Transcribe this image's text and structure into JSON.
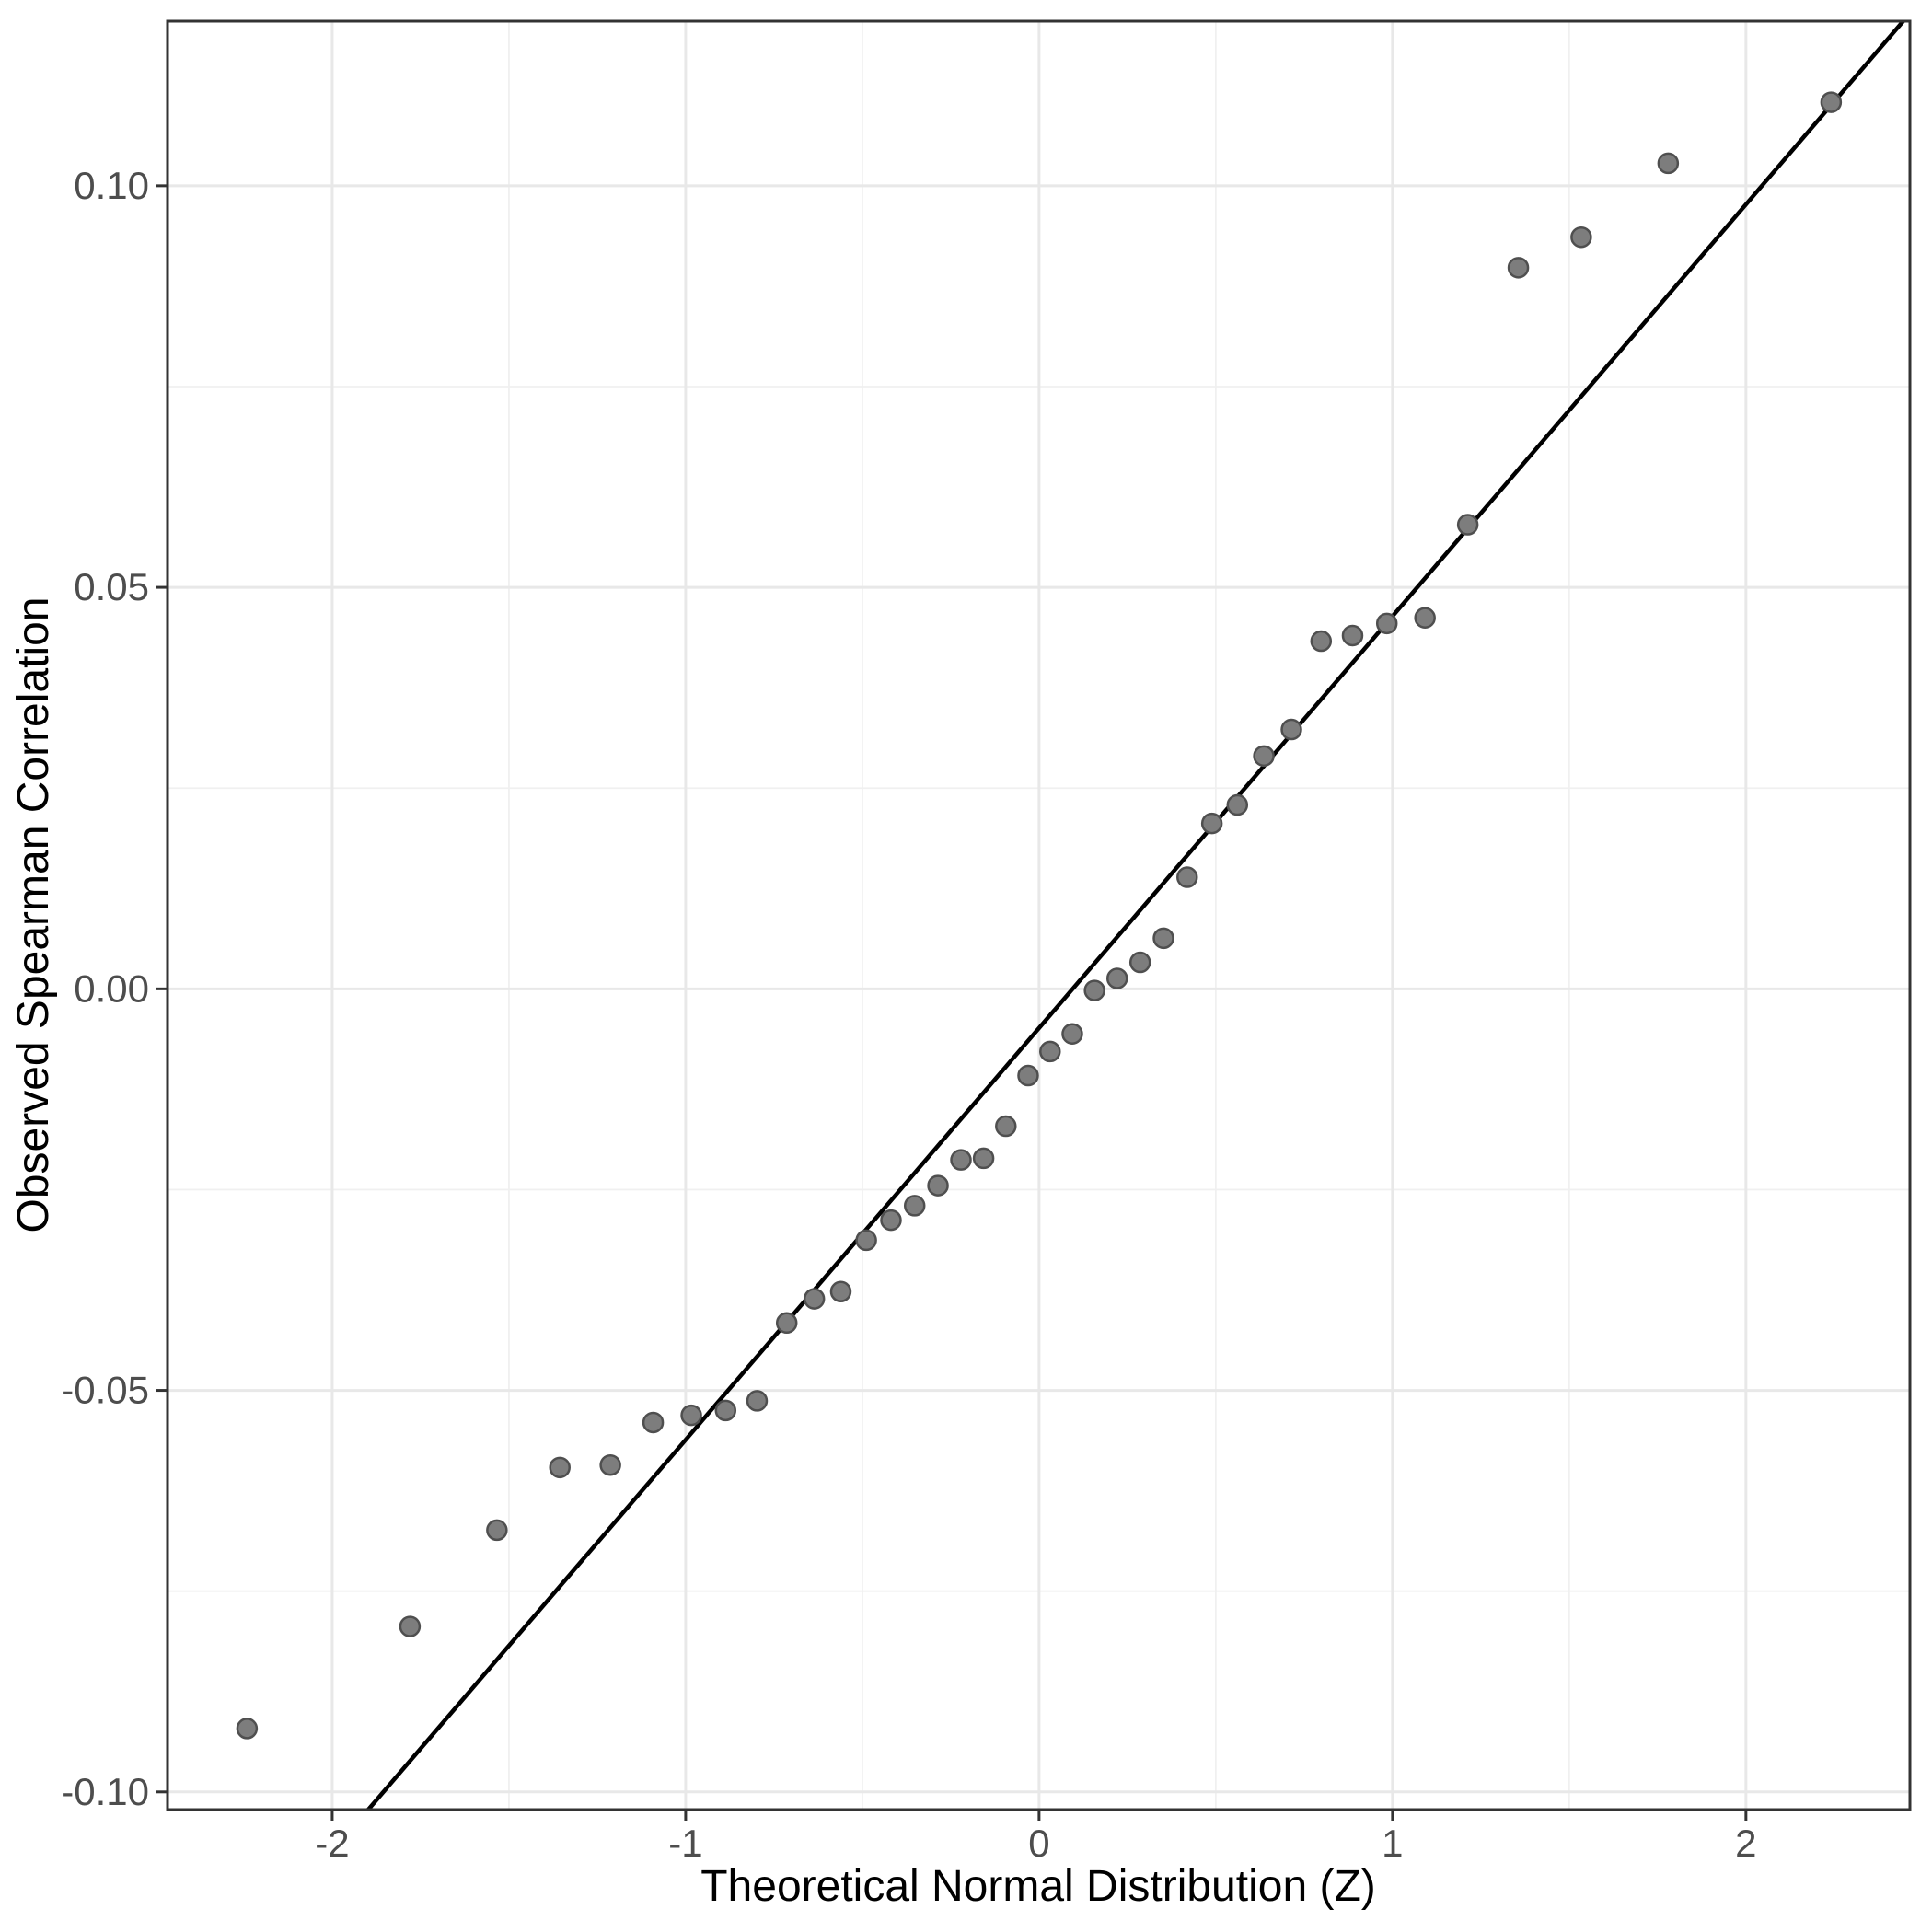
{
  "chart_data": {
    "type": "scatter",
    "title": "",
    "xlabel": "Theoretical Normal Distribution (Z)",
    "ylabel": "Observed Spearman Correlation",
    "xlim": [
      -2.466,
      2.464
    ],
    "ylim": [
      -0.1022,
      0.1205
    ],
    "grid": "on",
    "legend": "none",
    "x_tick_values": [
      -2,
      -1,
      0,
      1,
      2
    ],
    "x_tick_labels": [
      "-2",
      "-1",
      "0",
      "1",
      "2"
    ],
    "y_tick_values": [
      0.1,
      0.05,
      0.0,
      -0.05,
      -0.1
    ],
    "y_tick_labels": [
      "0.10",
      "0.05",
      "0.00",
      "-0.05",
      "-0.10"
    ],
    "x_minor_gridlines": [
      -1.5,
      -0.5,
      0.5,
      1.5
    ],
    "y_minor_gridlines": [
      0.075,
      0.025,
      -0.025,
      -0.075
    ],
    "ref_line": {
      "slope": 0.0513,
      "intercept": -0.0048,
      "x1": -1.898,
      "y1": -0.1022,
      "x2": 2.445,
      "y2": 0.1205
    },
    "points": [
      {
        "x": -2.241,
        "y": -0.0921
      },
      {
        "x": -1.78,
        "y": -0.0794
      },
      {
        "x": -1.534,
        "y": -0.0674
      },
      {
        "x": -1.356,
        "y": -0.0596
      },
      {
        "x": -1.213,
        "y": -0.0593
      },
      {
        "x": -1.092,
        "y": -0.054
      },
      {
        "x": -0.984,
        "y": -0.0531
      },
      {
        "x": -0.887,
        "y": -0.0525
      },
      {
        "x": -0.798,
        "y": -0.0513
      },
      {
        "x": -0.714,
        "y": -0.0416
      },
      {
        "x": -0.636,
        "y": -0.0386
      },
      {
        "x": -0.561,
        "y": -0.0377
      },
      {
        "x": -0.489,
        "y": -0.0313
      },
      {
        "x": -0.419,
        "y": -0.0288
      },
      {
        "x": -0.352,
        "y": -0.027
      },
      {
        "x": -0.286,
        "y": -0.0245
      },
      {
        "x": -0.221,
        "y": -0.0213
      },
      {
        "x": -0.157,
        "y": -0.0211
      },
      {
        "x": -0.094,
        "y": -0.0171
      },
      {
        "x": -0.031,
        "y": -0.0108
      },
      {
        "x": 0.031,
        "y": -0.0078
      },
      {
        "x": 0.094,
        "y": -0.0056
      },
      {
        "x": 0.157,
        "y": -0.0002
      },
      {
        "x": 0.221,
        "y": 0.0013
      },
      {
        "x": 0.286,
        "y": 0.0033
      },
      {
        "x": 0.352,
        "y": 0.0063
      },
      {
        "x": 0.419,
        "y": 0.0139
      },
      {
        "x": 0.489,
        "y": 0.0206
      },
      {
        "x": 0.561,
        "y": 0.0229
      },
      {
        "x": 0.636,
        "y": 0.029
      },
      {
        "x": 0.714,
        "y": 0.0323
      },
      {
        "x": 0.798,
        "y": 0.0433
      },
      {
        "x": 0.887,
        "y": 0.044
      },
      {
        "x": 0.984,
        "y": 0.0455
      },
      {
        "x": 1.092,
        "y": 0.0462
      },
      {
        "x": 1.213,
        "y": 0.0578
      },
      {
        "x": 1.356,
        "y": 0.0898
      },
      {
        "x": 1.534,
        "y": 0.0936
      },
      {
        "x": 1.78,
        "y": 0.1028
      },
      {
        "x": 2.241,
        "y": 0.1104
      }
    ],
    "colors": {
      "background": "#ffffff",
      "panel_background": "#ffffff",
      "grid_major": "#e8e8e8",
      "grid_minor": "#f0f0f0",
      "panel_border": "#333333",
      "tick": "#333333",
      "tick_label": "#4d4d4d",
      "axis_title": "#000000",
      "point_fill": "#7d7d7d",
      "point_stroke": "#4f4f4f",
      "ref_line": "#000000"
    }
  }
}
